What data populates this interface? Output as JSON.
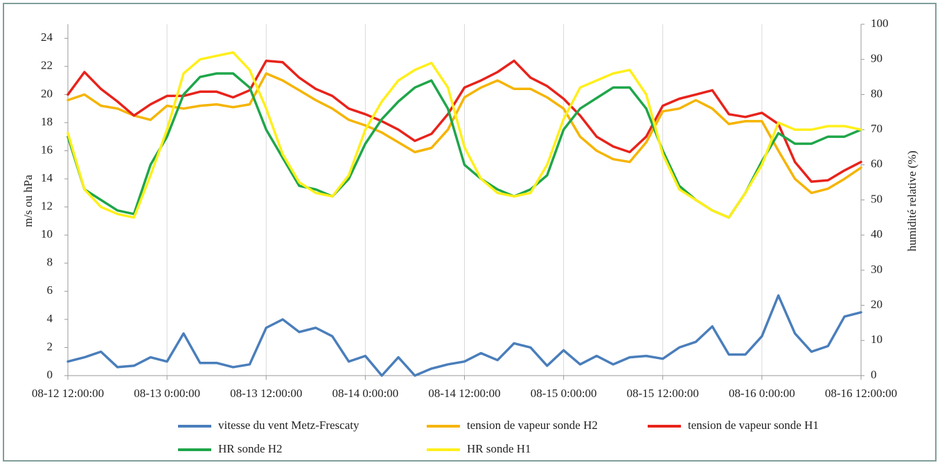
{
  "chart_data": {
    "type": "line",
    "y_label": "m/s ou hPa",
    "y2_label": "humidité relative (%)",
    "x": [
      "08-12 12:00:00",
      "08-12 14:00:00",
      "08-12 16:00:00",
      "08-12 18:00:00",
      "08-12 20:00:00",
      "08-12 22:00:00",
      "08-13 0:00:00",
      "08-13 2:00:00",
      "08-13 4:00:00",
      "08-13 6:00:00",
      "08-13 8:00:00",
      "08-13 10:00:00",
      "08-13 12:00:00",
      "08-13 14:00:00",
      "08-13 16:00:00",
      "08-13 18:00:00",
      "08-13 20:00:00",
      "08-13 22:00:00",
      "08-14 0:00:00",
      "08-14 2:00:00",
      "08-14 4:00:00",
      "08-14 6:00:00",
      "08-14 8:00:00",
      "08-14 10:00:00",
      "08-14 12:00:00",
      "08-14 14:00:00",
      "08-14 16:00:00",
      "08-14 18:00:00",
      "08-14 20:00:00",
      "08-14 22:00:00",
      "08-15 0:00:00",
      "08-15 2:00:00",
      "08-15 4:00:00",
      "08-15 6:00:00",
      "08-15 8:00:00",
      "08-15 10:00:00",
      "08-15 12:00:00",
      "08-15 14:00:00",
      "08-15 16:00:00",
      "08-15 18:00:00",
      "08-15 20:00:00",
      "08-15 22:00:00",
      "08-16 0:00:00",
      "08-16 2:00:00",
      "08-16 4:00:00",
      "08-16 6:00:00",
      "08-16 8:00:00",
      "08-16 10:00:00",
      "08-16 12:00:00"
    ],
    "xlim": [
      "08-12 12:00:00",
      "08-16 12:00:00"
    ],
    "xticks": [
      "08-12 12:00:00",
      "08-13 0:00:00",
      "08-13 12:00:00",
      "08-14 0:00:00",
      "08-14 12:00:00",
      "08-15 0:00:00",
      "08-15 12:00:00",
      "08-16 0:00:00",
      "08-16 12:00:00"
    ],
    "ylim": [
      0,
      25
    ],
    "yticks": [
      0,
      2,
      4,
      6,
      8,
      10,
      12,
      14,
      16,
      18,
      20,
      22,
      24
    ],
    "y2lim": [
      0,
      100
    ],
    "y2ticks": [
      0,
      10,
      20,
      30,
      40,
      50,
      60,
      70,
      80,
      90,
      100
    ],
    "grid": "x",
    "series": [
      {
        "name": "vitesse du vent Metz-Frescaty",
        "color": "#4a7ebb",
        "axis": "y",
        "values": [
          1.0,
          1.3,
          1.7,
          0.6,
          0.7,
          1.3,
          1.0,
          3.0,
          0.9,
          0.9,
          0.6,
          0.8,
          3.4,
          4.0,
          3.1,
          3.4,
          2.8,
          1.0,
          1.4,
          0,
          1.3,
          0,
          0.5,
          0.8,
          1.0,
          1.6,
          1.1,
          2.3,
          2.0,
          0.7,
          1.8,
          0.8,
          1.4,
          0.8,
          1.3,
          1.4,
          1.2,
          2.0,
          2.4,
          3.5,
          1.5,
          1.5,
          2.8,
          5.7,
          3.0,
          1.7,
          2.1,
          4.2,
          4.5
        ]
      },
      {
        "name": "tension de vapeur sonde H2",
        "color": "#f5b400",
        "axis": "y",
        "values": [
          19.6,
          20.0,
          19.2,
          19.0,
          18.5,
          18.2,
          19.2,
          19.0,
          19.2,
          19.3,
          19.1,
          19.3,
          21.5,
          21.0,
          20.3,
          19.6,
          19.0,
          18.2,
          17.8,
          17.3,
          16.6,
          15.9,
          16.2,
          17.5,
          19.8,
          20.5,
          21.0,
          20.4,
          20.4,
          19.8,
          19.0,
          17.0,
          16.0,
          15.4,
          15.2,
          16.6,
          18.8,
          19.0,
          19.6,
          19.0,
          17.9,
          18.1,
          18.1,
          16.0,
          14.0,
          13.0,
          13.3,
          14.0,
          14.8
        ]
      },
      {
        "name": "tension de vapeur sonde H1",
        "color": "#e8231b",
        "axis": "y",
        "values": [
          20.0,
          21.6,
          20.4,
          19.5,
          18.5,
          19.3,
          19.9,
          19.9,
          20.2,
          20.2,
          19.8,
          20.3,
          22.4,
          22.3,
          21.2,
          20.4,
          19.9,
          19.0,
          18.6,
          18.1,
          17.5,
          16.7,
          17.2,
          18.6,
          20.5,
          21.0,
          21.6,
          22.4,
          21.2,
          20.6,
          19.7,
          18.5,
          17.0,
          16.3,
          15.9,
          17.0,
          19.2,
          19.7,
          20.0,
          20.3,
          18.6,
          18.4,
          18.7,
          17.9,
          15.2,
          13.8,
          13.9,
          14.6,
          15.2
        ]
      },
      {
        "name": "HR sonde H2",
        "color": "#1fa64a",
        "axis": "y2",
        "values": [
          68,
          53,
          50,
          47,
          46,
          60,
          68,
          80,
          85,
          86,
          86,
          82,
          70,
          62,
          54,
          53,
          51,
          56,
          66,
          73,
          78,
          82,
          84,
          76,
          60,
          56,
          53,
          51,
          53,
          57,
          70,
          76,
          79,
          82,
          82,
          76,
          64,
          54,
          50,
          47,
          45,
          52,
          61,
          69,
          66,
          66,
          68,
          68,
          70
        ]
      },
      {
        "name": "HR sonde H1",
        "color": "#ffef1a",
        "axis": "y2",
        "values": [
          69,
          53,
          48,
          46,
          45,
          57,
          70,
          86,
          90,
          91,
          92,
          87,
          76,
          63,
          55,
          52,
          51,
          57,
          70,
          78,
          84,
          87,
          89,
          82,
          65,
          56,
          52,
          51,
          52,
          60,
          73,
          82,
          84,
          86,
          87,
          80,
          63,
          53,
          50,
          47,
          45,
          52,
          60,
          72,
          70,
          70,
          71,
          71,
          70
        ]
      }
    ]
  }
}
